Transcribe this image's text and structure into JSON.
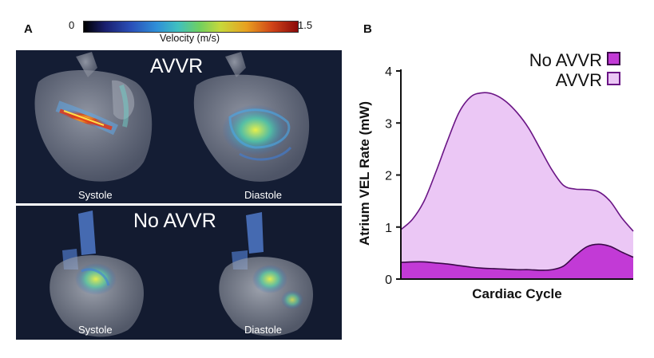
{
  "panel_labels": {
    "a": "A",
    "b": "B"
  },
  "colorbar": {
    "min_label": "0",
    "max_label": "1.5",
    "label": "Velocity (m/s)"
  },
  "flow_panels": {
    "avvr": {
      "title": "AVVR",
      "systole": "Systole",
      "diastole": "Diastole"
    },
    "no_avvr": {
      "title": "No AVVR",
      "systole": "Systole",
      "diastole": "Diastole"
    }
  },
  "colors": {
    "avvr_fill": "#ebc7f5",
    "avvr_line": "#6a1585",
    "no_avvr_fill": "#c23ad6",
    "no_avvr_line": "#3a0a48"
  },
  "chart_data": {
    "type": "area",
    "title": "",
    "xlabel": "Cardiac Cycle",
    "ylabel": "Atrium VEL Rate  (mW)",
    "ylim": [
      0,
      4
    ],
    "yticks": [
      "0",
      "1",
      "2",
      "3",
      "4"
    ],
    "x": [
      0,
      0.05,
      0.1,
      0.15,
      0.2,
      0.25,
      0.3,
      0.35,
      0.4,
      0.45,
      0.5,
      0.55,
      0.6,
      0.65,
      0.7,
      0.75,
      0.8,
      0.85,
      0.9,
      0.95,
      1.0
    ],
    "legend_position": "top-right",
    "series": [
      {
        "name": "No AVVR",
        "values": [
          0.32,
          0.33,
          0.33,
          0.31,
          0.29,
          0.26,
          0.23,
          0.21,
          0.2,
          0.19,
          0.18,
          0.18,
          0.17,
          0.18,
          0.25,
          0.45,
          0.62,
          0.67,
          0.63,
          0.52,
          0.42
        ]
      },
      {
        "name": "AVVR",
        "values": [
          0.95,
          1.15,
          1.5,
          2.05,
          2.65,
          3.2,
          3.5,
          3.58,
          3.55,
          3.42,
          3.2,
          2.9,
          2.5,
          2.1,
          1.8,
          1.73,
          1.72,
          1.68,
          1.5,
          1.18,
          0.92
        ]
      }
    ]
  }
}
